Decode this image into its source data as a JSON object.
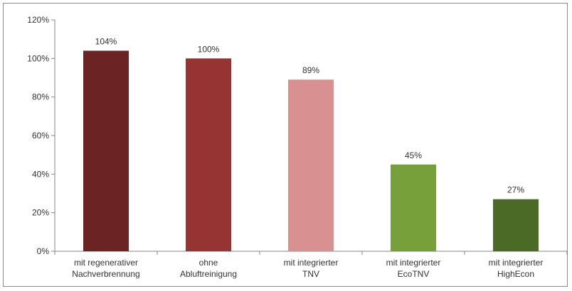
{
  "chart_data": {
    "type": "bar",
    "title": "",
    "xlabel": "",
    "ylabel": "",
    "ylim": [
      0,
      120
    ],
    "y_ticks": [
      0,
      20,
      40,
      60,
      80,
      100,
      120
    ],
    "y_tick_format": "percent",
    "grid": false,
    "legend": "none",
    "categories": [
      [
        "mit regenerativer",
        "Nachverbrennung"
      ],
      [
        "ohne",
        "Abluftreinigung"
      ],
      [
        "mit integrierter",
        "TNV"
      ],
      [
        "mit integrierter",
        "EcoTNV"
      ],
      [
        "mit integrierter",
        "HighEcon"
      ]
    ],
    "values": [
      104,
      100,
      89,
      45,
      27
    ],
    "value_labels": [
      "104%",
      "100%",
      "89%",
      "45%",
      "27%"
    ],
    "colors": [
      "#6b2323",
      "#963434",
      "#d99090",
      "#78a03a",
      "#4a6a26"
    ]
  }
}
